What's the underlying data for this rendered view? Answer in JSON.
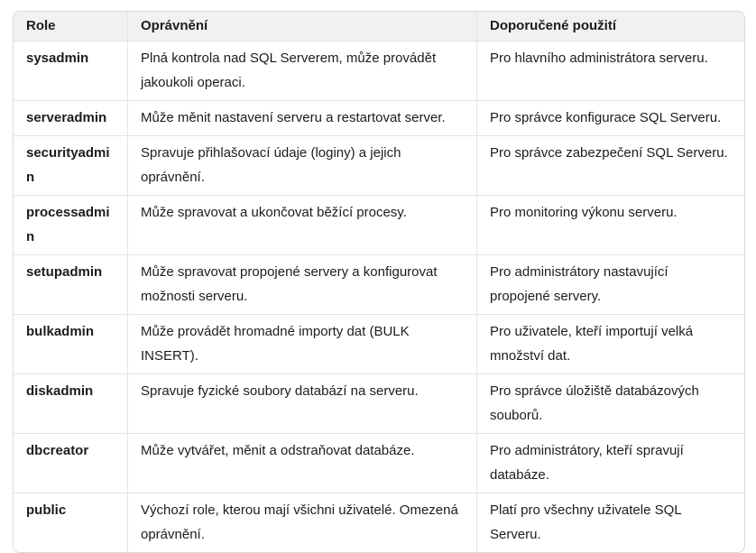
{
  "table": {
    "headers": {
      "role": "Role",
      "permissions": "Oprávnění",
      "usage": "Doporučené použití"
    },
    "rows": [
      {
        "role": "sysadmin",
        "permissions": "Plná kontrola nad SQL Serverem, může provádět jakoukoli operaci.",
        "usage": "Pro hlavního administrátora serveru."
      },
      {
        "role": "serveradmin",
        "permissions": "Může měnit nastavení serveru a restartovat server.",
        "usage": "Pro správce konfigurace SQL Serveru."
      },
      {
        "role": "securityadmin",
        "permissions": "Spravuje přihlašovací údaje (loginy) a jejich oprávnění.",
        "usage": "Pro správce zabezpečení SQL Serveru."
      },
      {
        "role": "processadmin",
        "permissions": "Může spravovat a ukončovat běžící procesy.",
        "usage": "Pro monitoring výkonu serveru."
      },
      {
        "role": "setupadmin",
        "permissions": "Může spravovat propojené servery a konfigurovat možnosti serveru.",
        "usage": "Pro administrátory nastavující propojené servery."
      },
      {
        "role": "bulkadmin",
        "permissions": "Může provádět hromadné importy dat (BULK INSERT).",
        "usage": "Pro uživatele, kteří importují velká množství dat."
      },
      {
        "role": "diskadmin",
        "permissions": "Spravuje fyzické soubory databází na serveru.",
        "usage": "Pro správce úložiště databázových souborů."
      },
      {
        "role": "dbcreator",
        "permissions": "Může vytvářet, měnit a odstraňovat databáze.",
        "usage": "Pro administrátory, kteří spravují databáze."
      },
      {
        "role": "public",
        "permissions": "Výchozí role, kterou mají všichni uživatelé. Omezená oprávnění.",
        "usage": "Platí pro všechny uživatele SQL Serveru."
      }
    ]
  },
  "colors": {
    "header_background": "#f1f1f1",
    "border": "#e3e3e3",
    "outer_border": "#d9d9d9",
    "text": "#1c1c1c"
  }
}
